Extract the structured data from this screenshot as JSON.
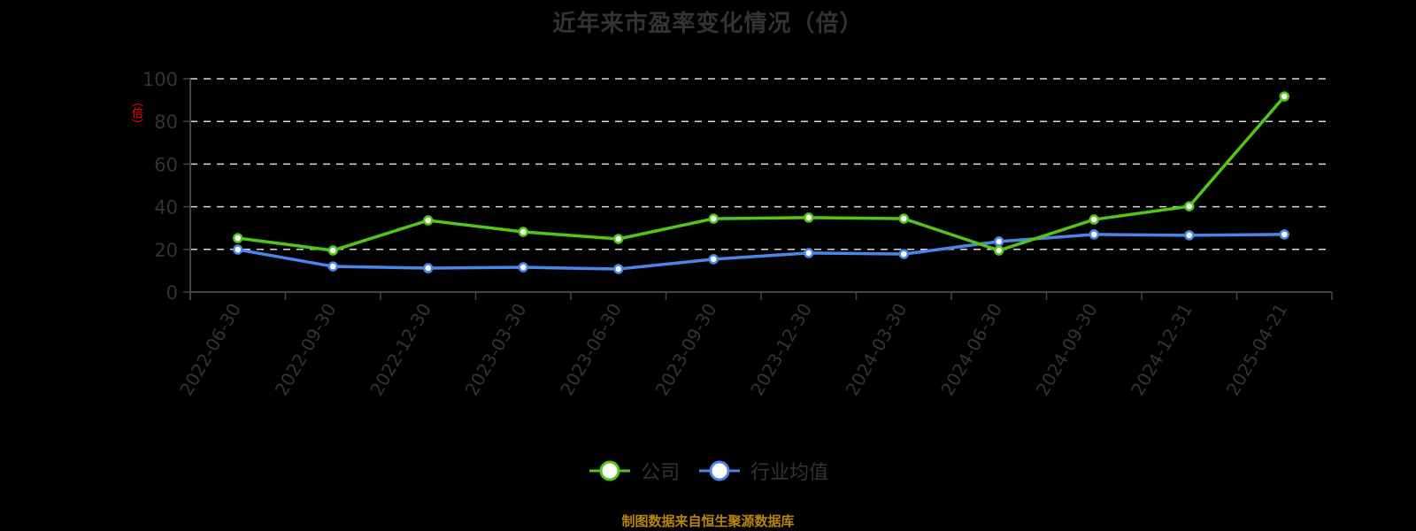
{
  "header": {
    "title": "近年来市盈率变化情况（倍）"
  },
  "axis": {
    "y_title": "（倍）",
    "y_ticks": [
      "0",
      "20",
      "40",
      "60",
      "80",
      "100"
    ]
  },
  "legend": {
    "items": [
      {
        "label": "公司",
        "color": "#52c41a"
      },
      {
        "label": "行业均值",
        "color": "#4a86e8"
      }
    ]
  },
  "footer": {
    "source": "制图数据来自恒生聚源数据库"
  },
  "colors": {
    "background": "#000000",
    "company": "#52c41a",
    "industry": "#4a86e8",
    "grid": "#d9d9d9",
    "axis": "#444444",
    "text": "#333333",
    "source_text": "#b8860b",
    "y_title": "#ff0000"
  },
  "chart_data": {
    "type": "line",
    "title": "近年来市盈率变化情况（倍）",
    "xlabel": "",
    "ylabel": "（倍）",
    "ylim": [
      0,
      100
    ],
    "yticks": [
      0,
      20,
      40,
      60,
      80,
      100
    ],
    "grid": true,
    "legend_position": "bottom",
    "categories": [
      "2022-06-30",
      "2022-09-30",
      "2022-12-30",
      "2023-03-30",
      "2023-06-30",
      "2023-09-30",
      "2023-12-30",
      "2024-03-30",
      "2024-06-30",
      "2024-09-30",
      "2024-12-31",
      "2025-04-21"
    ],
    "series": [
      {
        "name": "公司",
        "color": "#52c41a",
        "values": [
          25.3,
          19.5,
          33.6,
          28.2,
          24.9,
          34.4,
          34.9,
          34.4,
          19.5,
          34.0,
          40.2,
          91.7
        ]
      },
      {
        "name": "行业均值",
        "color": "#4a86e8",
        "values": [
          19.9,
          12.0,
          11.2,
          11.6,
          10.8,
          15.4,
          18.3,
          17.8,
          23.7,
          27.0,
          26.6,
          27.0
        ]
      }
    ]
  }
}
